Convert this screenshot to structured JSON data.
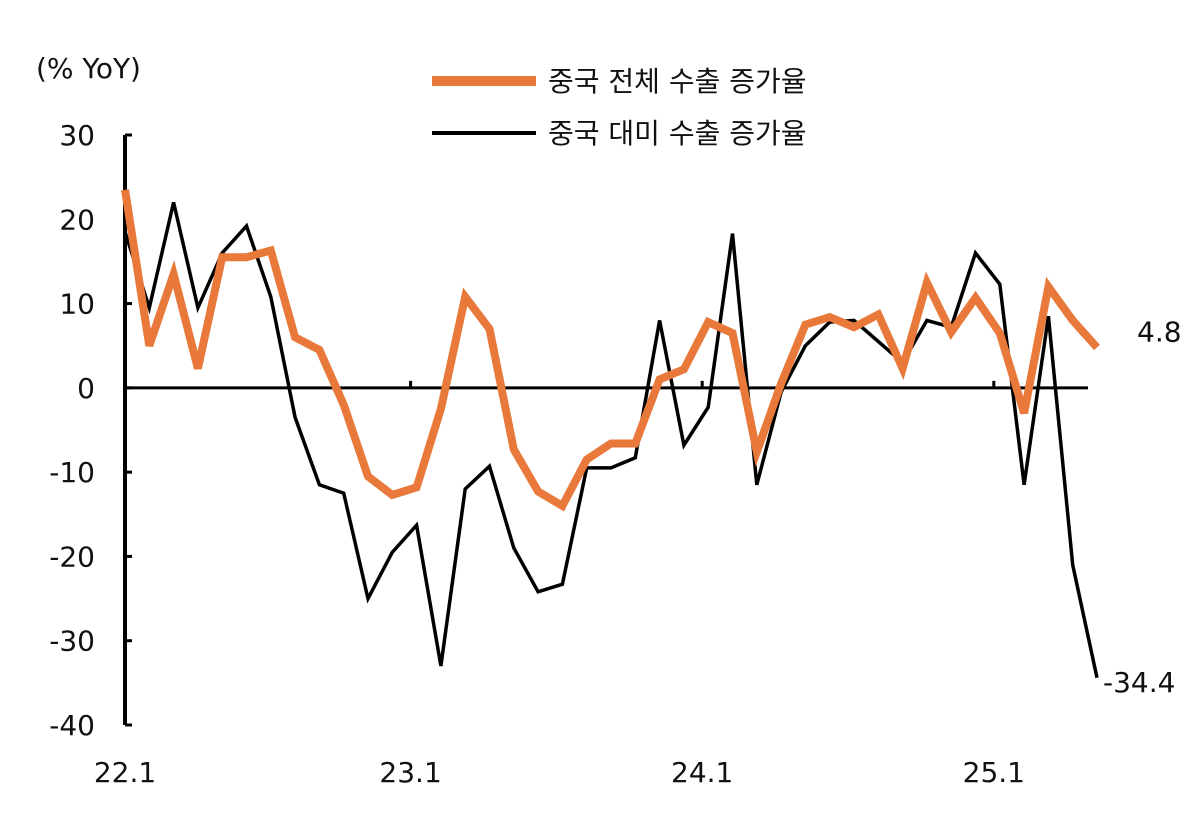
{
  "chart_data": {
    "type": "line",
    "title": "",
    "unit_label": "(% YoY)",
    "xlabel": "",
    "ylabel": "",
    "ylim": [
      -40,
      30
    ],
    "yticks": [
      30,
      20,
      10,
      0,
      -10,
      -20,
      -30,
      -40
    ],
    "ytick_labels": [
      "30",
      "20",
      "10",
      "0",
      "-10",
      "-20",
      "-30",
      "-40"
    ],
    "x_start": "22.1",
    "x_count": 41,
    "xtick_labels": [
      "22.1",
      "23.1",
      "24.1",
      "25.1"
    ],
    "xtick_positions": [
      0,
      12,
      24,
      36
    ],
    "legend_position": "top-center",
    "grid": false,
    "series": [
      {
        "name": "중국 전체 수출 증가율",
        "color": "#E8793A",
        "values": [
          23.5,
          5.0,
          13.5,
          2.3,
          15.5,
          15.5,
          16.3,
          6.0,
          4.5,
          -2.0,
          -10.5,
          -12.7,
          -11.8,
          -2.5,
          10.8,
          7.0,
          -7.3,
          -12.3,
          -14.0,
          -8.5,
          -6.6,
          -6.6,
          1.0,
          2.2,
          7.8,
          6.5,
          -7.6,
          0.5,
          7.5,
          8.4,
          7.2,
          8.7,
          2.3,
          12.5,
          6.6,
          10.7,
          6.5,
          -3.0,
          12.0,
          8.0,
          4.8
        ],
        "end_label": "4.8"
      },
      {
        "name": "중국 대미 수출 증가율",
        "color": "#000000",
        "values": [
          18.5,
          9.5,
          22.0,
          9.5,
          16.0,
          19.2,
          10.8,
          -3.5,
          -11.5,
          -12.5,
          -25.0,
          -19.5,
          -16.3,
          -33.0,
          -12.0,
          -9.3,
          -19.0,
          -24.2,
          -23.3,
          -9.5,
          -9.5,
          -8.3,
          8.0,
          -6.8,
          -2.3,
          18.3,
          -11.5,
          -0.5,
          5.0,
          7.8,
          8.0,
          5.5,
          3.0,
          8.0,
          7.2,
          16.0,
          12.3,
          -11.5,
          8.5,
          -21.0,
          -34.4
        ],
        "end_label": "-34.4"
      }
    ]
  }
}
